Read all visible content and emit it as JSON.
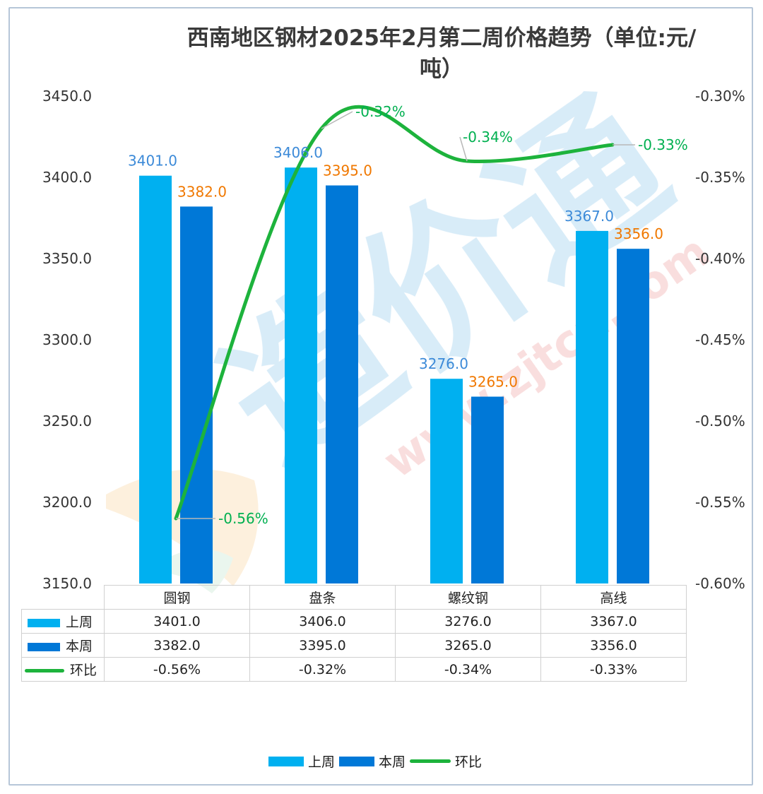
{
  "colors": {
    "last_week": "#00b0f0",
    "this_week": "#0078d7",
    "ratio_line": "#1db33c",
    "last_week_label": "#3c8ad8",
    "this_week_label": "#f07800",
    "ratio_label": "#00b050",
    "axis_text": "#333333",
    "watermark": "#b9dcf2"
  },
  "chart_data": {
    "type": "bar",
    "title": "西南地区钢材2025年2月第二周价格趋势（单位:元/吨）",
    "title_line1": "西南地区钢材2025年2月第二周价格趋势（单位:元/",
    "title_line2": "吨）",
    "categories": [
      "圆钢",
      "盘条",
      "螺纹钢",
      "高线"
    ],
    "series": [
      {
        "name": "上周",
        "type": "bar",
        "axis": "left",
        "values": [
          3401.0,
          3406.0,
          3276.0,
          3367.0
        ],
        "labels": [
          "3401.0",
          "3406.0",
          "3276.0",
          "3367.0"
        ]
      },
      {
        "name": "本周",
        "type": "bar",
        "axis": "left",
        "values": [
          3382.0,
          3395.0,
          3265.0,
          3356.0
        ],
        "labels": [
          "3382.0",
          "3395.0",
          "3265.0",
          "3356.0"
        ]
      },
      {
        "name": "环比",
        "type": "line",
        "axis": "right",
        "values": [
          -0.56,
          -0.32,
          -0.34,
          -0.33
        ],
        "labels": [
          "-0.56%",
          "-0.32%",
          "-0.34%",
          "-0.33%"
        ]
      }
    ],
    "y_left": {
      "ylim": [
        3150,
        3450
      ],
      "ticks": [
        "3450.0",
        "3400.0",
        "3350.0",
        "3300.0",
        "3250.0",
        "3200.0",
        "3150.0"
      ]
    },
    "y_right": {
      "ylim": [
        -0.6,
        -0.3
      ],
      "ticks": [
        "-0.30%",
        "-0.35%",
        "-0.40%",
        "-0.45%",
        "-0.50%",
        "-0.55%",
        "-0.60%"
      ]
    },
    "grid": false,
    "legend": "bottom",
    "data_table": true
  },
  "table": {
    "header": [
      "圆钢",
      "盘条",
      "螺纹钢",
      "高线"
    ],
    "rows": [
      {
        "label": "上周",
        "values": [
          "3401.0",
          "3406.0",
          "3276.0",
          "3367.0"
        ]
      },
      {
        "label": "本周",
        "values": [
          "3382.0",
          "3395.0",
          "3265.0",
          "3356.0"
        ]
      },
      {
        "label": "环比",
        "values": [
          "-0.56%",
          "-0.32%",
          "-0.34%",
          "-0.33%"
        ]
      }
    ]
  },
  "legend": {
    "items": [
      "上周",
      "本周",
      "环比"
    ]
  }
}
